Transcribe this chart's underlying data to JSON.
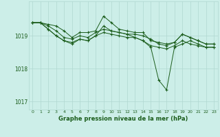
{
  "background_color": "#cceee8",
  "line_color": "#1a5c1a",
  "grid_color": "#b0d8d0",
  "title": "Graphe pression niveau de la mer (hPa)",
  "xlim": [
    -0.5,
    23.5
  ],
  "ylim": [
    1016.75,
    1020.05
  ],
  "yticks": [
    1017,
    1018,
    1019
  ],
  "xticks": [
    0,
    1,
    2,
    3,
    4,
    5,
    6,
    7,
    8,
    9,
    10,
    11,
    12,
    13,
    14,
    15,
    16,
    17,
    18,
    19,
    20,
    21,
    22,
    23
  ],
  "series": [
    {
      "x": [
        0,
        1,
        2,
        3,
        4,
        5,
        6,
        7,
        8,
        9,
        10,
        11,
        12,
        13,
        14,
        15,
        16,
        17,
        18,
        19,
        20,
        21,
        22,
        23
      ],
      "y": [
        1019.4,
        1019.4,
        1019.35,
        1019.3,
        1019.15,
        1018.95,
        1019.1,
        1019.1,
        1019.15,
        1019.6,
        1019.4,
        1019.2,
        1019.15,
        1019.1,
        1019.1,
        1018.85,
        1018.8,
        1018.75,
        1018.8,
        1019.05,
        1018.95,
        1018.85,
        1018.75,
        1018.75
      ]
    },
    {
      "x": [
        0,
        1,
        2,
        3,
        4,
        5,
        6,
        7,
        8,
        9,
        10,
        11,
        12,
        13,
        14,
        15,
        16,
        17,
        18,
        19,
        20,
        21,
        22,
        23
      ],
      "y": [
        1019.4,
        1019.4,
        1019.3,
        1019.15,
        1018.95,
        1018.9,
        1019.0,
        1018.95,
        1019.1,
        1019.2,
        1019.15,
        1019.1,
        1019.05,
        1019.05,
        1019.0,
        1018.9,
        1018.75,
        1018.7,
        1018.8,
        1019.05,
        1018.95,
        1018.85,
        1018.75,
        1018.75
      ]
    },
    {
      "x": [
        0,
        1,
        2,
        3,
        4,
        5,
        6,
        7,
        8,
        9,
        10,
        11,
        12,
        13,
        14,
        15,
        16,
        17,
        18,
        19,
        20,
        21,
        22,
        23
      ],
      "y": [
        1019.4,
        1019.4,
        1019.2,
        1019.0,
        1018.85,
        1018.75,
        1018.9,
        1018.85,
        1019.0,
        1019.1,
        1019.05,
        1019.0,
        1018.95,
        1018.95,
        1018.85,
        1018.7,
        1018.65,
        1018.6,
        1018.7,
        1018.85,
        1018.75,
        1018.7,
        1018.65,
        1018.65
      ]
    },
    {
      "x": [
        0,
        1,
        2,
        3,
        4,
        5,
        6,
        7,
        8,
        9,
        10,
        11,
        12,
        13,
        14,
        15,
        16,
        17,
        18,
        19,
        20,
        21,
        22,
        23
      ],
      "y": [
        1019.4,
        1019.4,
        1019.2,
        1019.0,
        1018.85,
        1018.8,
        1018.9,
        1018.85,
        1019.0,
        1019.3,
        1019.15,
        1019.1,
        1019.05,
        1018.95,
        1018.85,
        1018.65,
        1017.65,
        1017.35,
        1018.65,
        1018.75,
        1018.85,
        1018.75,
        1018.65,
        1018.65
      ]
    }
  ]
}
